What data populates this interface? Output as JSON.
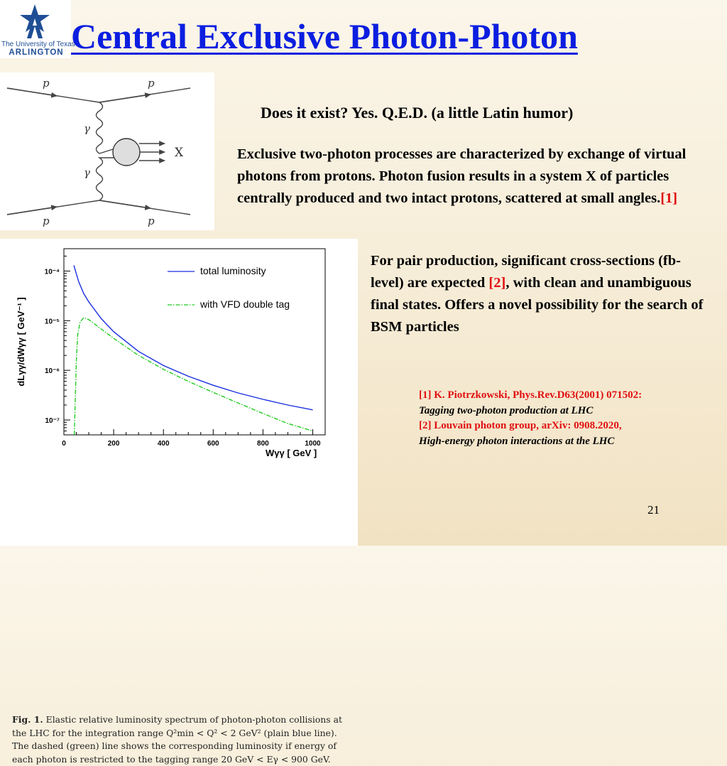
{
  "logo": {
    "line1": "The University of Texas",
    "line2": "ARLINGTON"
  },
  "title": "Central Exclusive Photon-Photon",
  "feynman": {
    "p1": "p",
    "p2": "p",
    "p3": "p",
    "p4": "p",
    "gamma1": "γ",
    "gamma2": "γ",
    "x": "X"
  },
  "exist": "Does it exist?  Yes. Q.E.D. (a little Latin humor)",
  "para1": {
    "text": "Exclusive two-photon processes are characterized by exchange of virtual photons from protons. Photon fusion results in a system X of particles centrally produced and two intact protons, scattered at small angles.",
    "ref": "[1]"
  },
  "para2": {
    "text_a": "For pair production, significant cross-sections (fb-level) are expected ",
    "ref": "[2]",
    "text_b": ", with clean and unambiguous final states. Offers a novel possibility for the search of BSM particles"
  },
  "refs": {
    "r1": "[1] K. Piotrzkowski, Phys.Rev.D63(2001) 071502:",
    "r1_title": "Tagging two-photon production at LHC",
    "r2": "[2] Louvain photon group, arXiv: 0908.2020,",
    "r2_title": "High-energy photon interactions at the LHC"
  },
  "page_number": "21",
  "caption": {
    "fig": "Fig. 1.",
    "text": " Elastic relative luminosity spectrum of photon-photon collisions at the LHC for the integration range Q²min < Q² < 2 GeV² (plain blue line). The dashed (green) line shows the corresponding luminosity if energy of each photon is restricted to the tagging range 20 GeV < Eγ < 900 GeV."
  },
  "chart_data": {
    "type": "line",
    "xlabel": "Wγγ [ GeV ]",
    "ylabel": "dLγγ/dWγγ [ GeV⁻¹ ]",
    "xlim": [
      0,
      1050
    ],
    "ylim_log10": [
      -7.3,
      -3.55
    ],
    "log_y": true,
    "x_ticks": [
      0,
      200,
      400,
      600,
      800,
      1000
    ],
    "y_ticks": [
      "10⁻⁴",
      "10⁻⁵",
      "10⁻⁶",
      "10⁻⁷"
    ],
    "legend_position": "top-right",
    "series": [
      {
        "name": "total luminosity",
        "color": "#1a2ee0",
        "style": "solid",
        "x": [
          40,
          60,
          80,
          100,
          150,
          200,
          300,
          400,
          500,
          600,
          700,
          800,
          900,
          1000
        ],
        "y": [
          0.00013,
          6e-05,
          3.5e-05,
          2.4e-05,
          1.1e-05,
          6e-06,
          2.4e-06,
          1.25e-06,
          7.6e-07,
          5e-07,
          3.5e-07,
          2.6e-07,
          2e-07,
          1.6e-07
        ]
      },
      {
        "name": "with VFD double tag",
        "color": "#22cc22",
        "style": "dash-dot",
        "x": [
          42,
          45,
          50,
          55,
          65,
          80,
          100,
          150,
          200,
          300,
          400,
          500,
          600,
          700,
          800,
          900,
          1000
        ],
        "y": [
          5e-08,
          2e-07,
          1.5e-06,
          5e-06,
          9.5e-06,
          1.15e-05,
          1.05e-05,
          6.8e-06,
          4.4e-06,
          2e-06,
          1.05e-06,
          6e-07,
          3.6e-07,
          2.2e-07,
          1.35e-07,
          8.5e-08,
          6e-08
        ]
      }
    ]
  }
}
